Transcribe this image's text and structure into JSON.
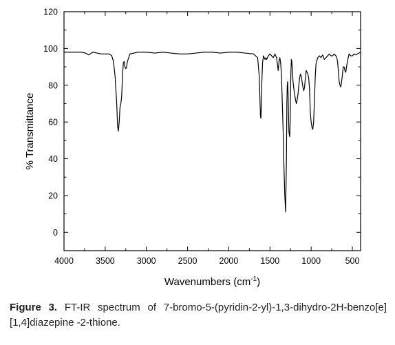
{
  "chart_data": {
    "type": "line",
    "title": "",
    "xlabel": "Wavenumbers (cm",
    "xlabel_sup": "-1",
    "xlabel_suffix": ")",
    "ylabel": "% Transmittance",
    "xlim": [
      4000,
      400
    ],
    "ylim": [
      -10,
      120
    ],
    "x_ticks": [
      4000,
      3500,
      3000,
      2500,
      2000,
      1500,
      1000,
      500
    ],
    "y_ticks": [
      0,
      20,
      40,
      60,
      80,
      100,
      120
    ],
    "x_reversed": true,
    "grid": false,
    "series": [
      {
        "color": "#000000",
        "x": [
          4000,
          3900,
          3800,
          3740,
          3700,
          3650,
          3600,
          3550,
          3500,
          3450,
          3420,
          3400,
          3380,
          3360,
          3350,
          3340,
          3330,
          3320,
          3310,
          3300,
          3290,
          3280,
          3270,
          3260,
          3250,
          3240,
          3230,
          3200,
          3100,
          3000,
          2900,
          2800,
          2700,
          2600,
          2500,
          2400,
          2300,
          2200,
          2100,
          2000,
          1900,
          1800,
          1700,
          1650,
          1630,
          1620,
          1615,
          1610,
          1605,
          1600,
          1590,
          1580,
          1570,
          1560,
          1550,
          1540,
          1520,
          1500,
          1480,
          1460,
          1440,
          1420,
          1400,
          1390,
          1380,
          1370,
          1360,
          1350,
          1340,
          1330,
          1320,
          1310,
          1300,
          1295,
          1290,
          1285,
          1280,
          1275,
          1270,
          1265,
          1260,
          1255,
          1250,
          1245,
          1240,
          1235,
          1230,
          1220,
          1210,
          1200,
          1190,
          1180,
          1170,
          1160,
          1150,
          1140,
          1130,
          1120,
          1110,
          1100,
          1090,
          1080,
          1070,
          1060,
          1050,
          1040,
          1030,
          1020,
          1010,
          1000,
          990,
          980,
          970,
          960,
          950,
          940,
          920,
          900,
          880,
          860,
          840,
          820,
          800,
          780,
          760,
          740,
          720,
          700,
          690,
          680,
          670,
          660,
          650,
          640,
          630,
          620,
          610,
          600,
          590,
          580,
          570,
          560,
          550,
          540,
          520,
          500,
          480,
          460,
          440,
          420,
          400
        ],
        "values": [
          98,
          98,
          98,
          97.5,
          96.5,
          98,
          97.5,
          97,
          97,
          97,
          96,
          93,
          85,
          70,
          58,
          55,
          60,
          68,
          70,
          74,
          85,
          92,
          93,
          90,
          89,
          90,
          93,
          97,
          98,
          98,
          97.5,
          98,
          97.5,
          97,
          97,
          97.5,
          98,
          98,
          97.5,
          98,
          98,
          97.5,
          97,
          95,
          85,
          70,
          63,
          62,
          68,
          80,
          92,
          96,
          95,
          94,
          95,
          94,
          96,
          97,
          96,
          95,
          97,
          95,
          88,
          93,
          95,
          92,
          85,
          70,
          55,
          35,
          20,
          11,
          40,
          70,
          80,
          82,
          75,
          65,
          55,
          53,
          52,
          60,
          78,
          88,
          94,
          93,
          90,
          82,
          78,
          75,
          72,
          70,
          72,
          75,
          80,
          84,
          86,
          85,
          82,
          79,
          77,
          79,
          84,
          88,
          87,
          86,
          84,
          78,
          65,
          60,
          57,
          56,
          60,
          72,
          85,
          92,
          95,
          96,
          95,
          96.5,
          94,
          95,
          96,
          97,
          96,
          96,
          97,
          96,
          95,
          93,
          88,
          82,
          80,
          79,
          82,
          86,
          90,
          90,
          88,
          87,
          90,
          93,
          95,
          97,
          96,
          96,
          97,
          96.5,
          97,
          97.5,
          98
        ]
      }
    ]
  },
  "caption": {
    "label": "Figure 3.",
    "text": " FT-IR spectrum of 7-bromo-5-(pyridin-2-yl)-1,3-dihydro-2H-benzo[e] [1,4]diazepine -2-thione."
  }
}
